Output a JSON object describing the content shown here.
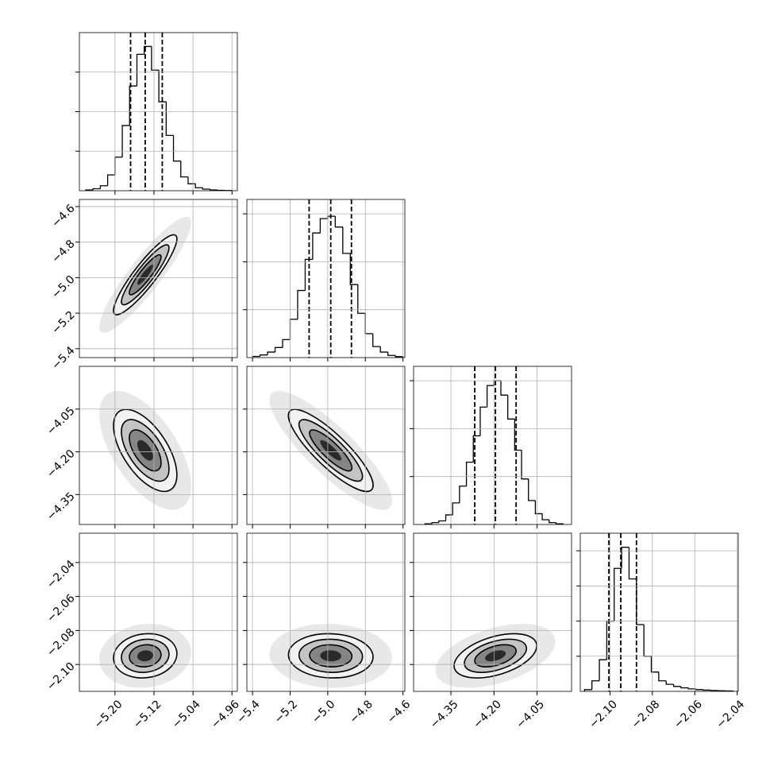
{
  "chart_data": {
    "type": "corner",
    "grid": true,
    "contour_levels": [
      0.5,
      1,
      1.5,
      2
    ],
    "variables": [
      {
        "ticks": [
          {
            "value": -5.2,
            "label": "−5.20"
          },
          {
            "value": -5.12,
            "label": "−5.12"
          },
          {
            "value": -5.04,
            "label": "−5.04"
          },
          {
            "value": -4.96,
            "label": "−4.96"
          }
        ],
        "xlim": [
          -5.273,
          -4.949
        ],
        "bins": [
          -5.26,
          -5.245,
          -5.23,
          -5.215,
          -5.2,
          -5.185,
          -5.17,
          -5.155,
          -5.14,
          -5.125,
          -5.11,
          -5.095,
          -5.08,
          -5.065,
          -5.05,
          -5.035,
          -5.02,
          -5.005,
          -4.99,
          -4.975,
          -4.96
        ],
        "counts": [
          4,
          10,
          25,
          80,
          170,
          330,
          530,
          690,
          730,
          610,
          450,
          280,
          150,
          70,
          35,
          15,
          8,
          4,
          2,
          1
        ],
        "hist_ylim": [
          0,
          800
        ],
        "hist_yticks": [
          200,
          400,
          600
        ],
        "quantiles": [
          -5.168,
          -5.138,
          -5.103
        ],
        "sd": 0.0325
      },
      {
        "ticks": [
          {
            "value": -5.4,
            "label": "−5.4"
          },
          {
            "value": -5.2,
            "label": "−5.2"
          },
          {
            "value": -5.0,
            "label": "−5.0"
          },
          {
            "value": -4.8,
            "label": "−4.8"
          },
          {
            "value": -4.6,
            "label": "−4.6"
          }
        ],
        "xlim": [
          -5.43,
          -4.59
        ],
        "ylim": [
          -5.45,
          -4.56
        ],
        "bins": [
          -5.4,
          -5.36,
          -5.32,
          -5.28,
          -5.24,
          -5.2,
          -5.16,
          -5.12,
          -5.08,
          -5.04,
          -5.0,
          -4.96,
          -4.92,
          -4.88,
          -4.84,
          -4.8,
          -4.76,
          -4.72,
          -4.68,
          -4.64,
          -4.6
        ],
        "counts": [
          5,
          11,
          23,
          42,
          75,
          160,
          280,
          410,
          520,
          580,
          590,
          545,
          435,
          305,
          185,
          100,
          46,
          23,
          9,
          4
        ],
        "hist_ylim": [
          0,
          660
        ],
        "hist_yticks": [
          200,
          400,
          600
        ],
        "quantiles": [
          -5.099,
          -4.984,
          -4.874
        ],
        "sd": 0.1125
      },
      {
        "ticks": [
          {
            "value": -4.35,
            "label": "−4.35"
          },
          {
            "value": -4.2,
            "label": "−4.20"
          },
          {
            "value": -4.05,
            "label": "−4.05"
          }
        ],
        "xlim": [
          -4.48,
          -3.93
        ],
        "ylim": [
          -4.455,
          -3.9
        ],
        "bins": [
          -4.44,
          -4.416,
          -4.392,
          -4.368,
          -4.344,
          -4.32,
          -4.296,
          -4.272,
          -4.248,
          -4.224,
          -4.2,
          -4.176,
          -4.152,
          -4.128,
          -4.104,
          -4.08,
          -4.056,
          -4.032,
          -4.008,
          -3.984,
          -3.96
        ],
        "counts": [
          3,
          8,
          15,
          40,
          90,
          160,
          260,
          370,
          490,
          580,
          600,
          540,
          440,
          310,
          190,
          100,
          45,
          20,
          8,
          3
        ],
        "hist_ylim": [
          0,
          660
        ],
        "hist_yticks": [
          200,
          400,
          600
        ],
        "quantiles": [
          -4.267,
          -4.195,
          -4.123
        ],
        "sd": 0.072
      },
      {
        "ticks": [
          {
            "value": -2.1,
            "label": "−2.10"
          },
          {
            "value": -2.08,
            "label": "−2.08"
          },
          {
            "value": -2.06,
            "label": "−2.06"
          },
          {
            "value": -2.04,
            "label": "−2.04"
          }
        ],
        "xlim": [
          -2.114,
          -2.0395
        ],
        "ylim": [
          -2.1158,
          -2.0228
        ],
        "bins": [
          -2.112,
          -2.1085,
          -2.105,
          -2.1015,
          -2.098,
          -2.0945,
          -2.091,
          -2.0875,
          -2.084,
          -2.0805,
          -2.077,
          -2.0735,
          -2.07,
          -2.0665,
          -2.063,
          -2.0595,
          -2.056,
          -2.0525,
          -2.049,
          -2.0455,
          -2.042
        ],
        "counts": [
          10,
          60,
          180,
          400,
          700,
          820,
          640,
          380,
          200,
          110,
          60,
          40,
          28,
          20,
          14,
          10,
          7,
          5,
          3,
          2
        ],
        "hist_ylim": [
          0,
          900
        ],
        "hist_yticks": [
          200,
          400,
          600,
          800
        ],
        "quantiles": [
          -2.1005,
          -2.0949,
          -2.0875
        ],
        "sd": 0.0065
      }
    ],
    "pairs": [
      {
        "row": 1,
        "col": 0,
        "corr": 0.9
      },
      {
        "row": 2,
        "col": 0,
        "corr": -0.6
      },
      {
        "row": 2,
        "col": 1,
        "corr": -0.85
      },
      {
        "row": 3,
        "col": 0,
        "corr": 0.1
      },
      {
        "row": 3,
        "col": 1,
        "corr": -0.05
      },
      {
        "row": 3,
        "col": 2,
        "corr": 0.45
      }
    ]
  }
}
